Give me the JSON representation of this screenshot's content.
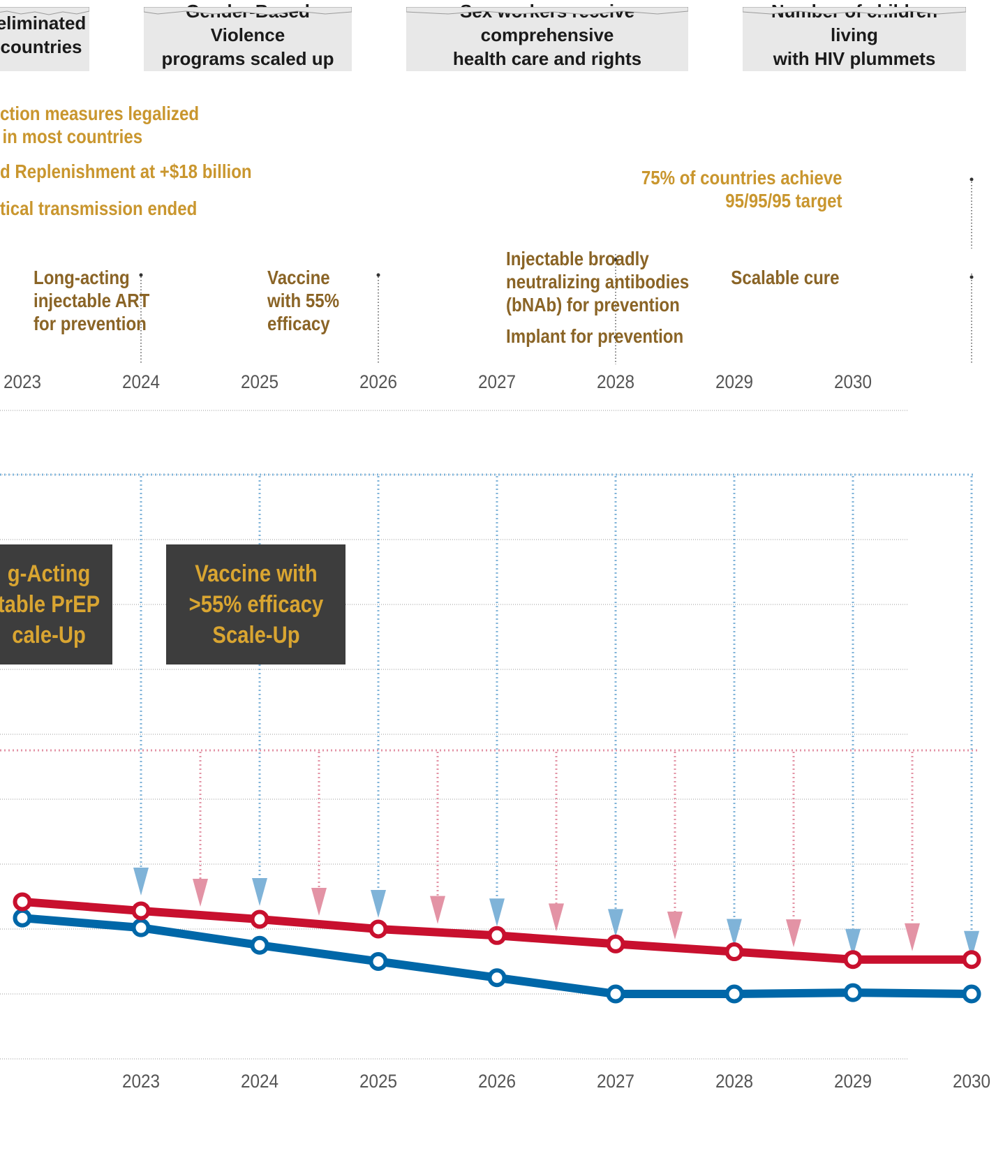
{
  "banners": [
    {
      "line1": "eliminated",
      "line2": "countries"
    },
    {
      "line1": "Gender-Based Violence",
      "line2": "programs scaled up"
    },
    {
      "line1": "Sex workers receive comprehensive",
      "line2": "health care and rights"
    },
    {
      "line1": "Number of children living",
      "line2": "with HIV plummets"
    }
  ],
  "policy_milestones": [
    {
      "line1": "ction measures legalized",
      "line2": "in most countries"
    },
    {
      "line1": "d Replenishment at +$18 billion"
    },
    {
      "line1": "tical transmission ended"
    },
    {
      "line1": "75% of countries achieve",
      "line2": "95/95/95 target"
    }
  ],
  "tech_milestones": [
    {
      "line1": "Long-acting",
      "line2": "injectable ART",
      "line3": "for prevention"
    },
    {
      "line1": "Vaccine",
      "line2": "with 55%",
      "line3": "efficacy"
    },
    {
      "line1": "Injectable broadly",
      "line2": "neutralizing antibodies",
      "line3": "(bNAb) for prevention"
    },
    {
      "line1": "Implant for prevention"
    },
    {
      "line1": "Scalable cure"
    }
  ],
  "top_axis_years": [
    "2023",
    "2024",
    "2025",
    "2026",
    "2027",
    "2028",
    "2029",
    "2030"
  ],
  "scaleup_boxes": [
    {
      "line1": "g-Acting",
      "line2": "table PrEP",
      "line3": "cale-Up"
    },
    {
      "line1": "Vaccine with",
      "line2": ">55% efficacy",
      "line3": "Scale-Up"
    }
  ],
  "colors": {
    "red_series": "#c8102e",
    "blue_series": "#0067a8",
    "blue_arrow": "#7fb3d8",
    "red_arrow": "#e393a5",
    "gold": "#c9962e",
    "brown": "#8a6426",
    "box_bg": "#3d3d3d"
  },
  "chart_data": {
    "type": "line",
    "x": [
      2022,
      2023,
      2024,
      2025,
      2026,
      2027,
      2028,
      2029,
      2030
    ],
    "xlim": [
      2022,
      2030
    ],
    "xticklabels": [
      "2023",
      "2024",
      "2025",
      "2026",
      "2027",
      "2028",
      "2029",
      "2030"
    ],
    "ylim": [
      0,
      9
    ],
    "grid": true,
    "series": [
      {
        "color": "red",
        "values": [
          2.42,
          2.28,
          2.15,
          2.0,
          1.9,
          1.77,
          1.65,
          1.53,
          1.53
        ]
      },
      {
        "color": "blue",
        "values": [
          2.17,
          2.02,
          1.75,
          1.5,
          1.25,
          1.0,
          1.0,
          1.02,
          1.0
        ]
      }
    ],
    "blue_arrow_years": [
      2023,
      2024,
      2025,
      2026,
      2027,
      2028,
      2029,
      2030
    ],
    "red_arrow_years": [
      2023.5,
      2024.5,
      2025.5,
      2026.5,
      2027.5,
      2028.5,
      2029.5
    ]
  }
}
